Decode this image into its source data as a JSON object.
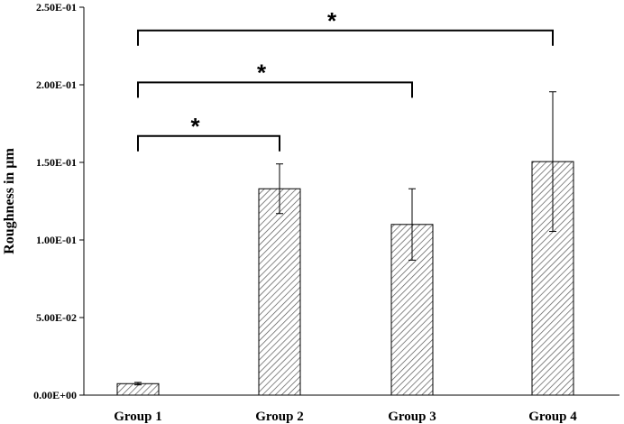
{
  "chart_data": {
    "type": "bar",
    "categories": [
      "Group 1",
      "Group 2",
      "Group 3",
      "Group 4"
    ],
    "values": [
      0.0074,
      0.133,
      0.11,
      0.1505
    ],
    "errors": [
      0.0008,
      0.016,
      0.023,
      0.045
    ],
    "ylabel": "Roughness in µm",
    "ylim": [
      0,
      0.25
    ],
    "ytick_values": [
      0,
      0.05,
      0.1,
      0.15,
      0.2,
      0.25
    ],
    "ytick_labels": [
      "0.00E+00",
      "5.00E-02",
      "1.00E-01",
      "1.50E-01",
      "2.00E-01",
      "2.50E-01"
    ],
    "bar_fill": "hatched",
    "grid": false,
    "significance": [
      {
        "from": "Group 1",
        "to": "Group 2",
        "label": "*",
        "level": 0.167
      },
      {
        "from": "Group 1",
        "to": "Group 3",
        "label": "*",
        "level": 0.2015
      },
      {
        "from": "Group 1",
        "to": "Group 4",
        "label": "*",
        "level": 0.235
      }
    ]
  }
}
